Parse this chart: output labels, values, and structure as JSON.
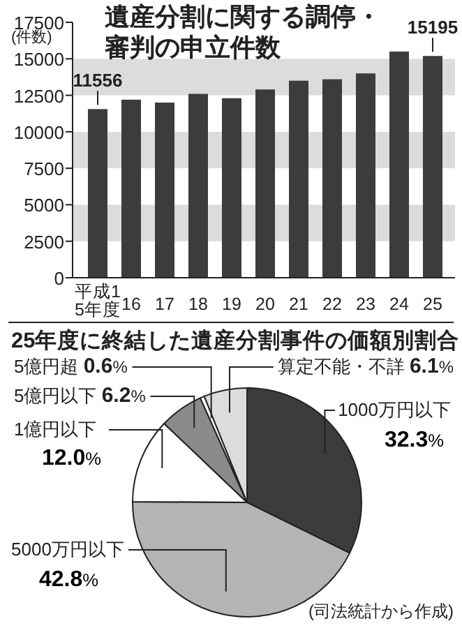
{
  "chart_data": [
    {
      "type": "bar",
      "title": "遺産分割に関する調停・審判の申立件数",
      "ylabel": "(件数)",
      "categories": [
        "平成15年度",
        "16",
        "17",
        "18",
        "19",
        "20",
        "21",
        "22",
        "23",
        "24",
        "25"
      ],
      "values": [
        11556,
        12200,
        12000,
        12600,
        12300,
        12900,
        13500,
        13600,
        14000,
        15500,
        15195
      ],
      "value_labels": [
        "11556",
        null,
        null,
        null,
        null,
        null,
        null,
        null,
        null,
        null,
        "15195"
      ],
      "color": "#3c3c3c",
      "ylim": [
        0,
        17500
      ],
      "yticks": [
        0,
        2500,
        5000,
        7500,
        10000,
        12500,
        15000,
        17500
      ],
      "bands": [
        {
          "axis": "y",
          "from": 2500,
          "to": 5000,
          "color": "#dcdcdc"
        },
        {
          "axis": "y",
          "from": 7500,
          "to": 10000,
          "color": "#dcdcdc"
        },
        {
          "axis": "y",
          "from": 12500,
          "to": 15000,
          "color": "#dcdcdc"
        }
      ],
      "grid": false
    },
    {
      "type": "pie",
      "title": "25年度に終結した遺産分割事件の価額別割合",
      "categories": [
        "1000万円以下",
        "5000万円以下",
        "1億円以下",
        "5億円以下",
        "5億円超",
        "算定不能・不詳"
      ],
      "values": [
        32.3,
        42.8,
        12.0,
        6.2,
        0.6,
        6.1
      ],
      "value_labels": [
        "32.3%",
        "42.8%",
        "12.0%",
        "6.2%",
        "0.6%",
        "6.1%"
      ],
      "colors": [
        "#3c3c3c",
        "#b4b4b4",
        "#ffffff",
        "#8a8a8a",
        "#ffffff",
        "#dcdcdc"
      ],
      "annotations": [
        "(司法統計から作成)"
      ]
    }
  ]
}
